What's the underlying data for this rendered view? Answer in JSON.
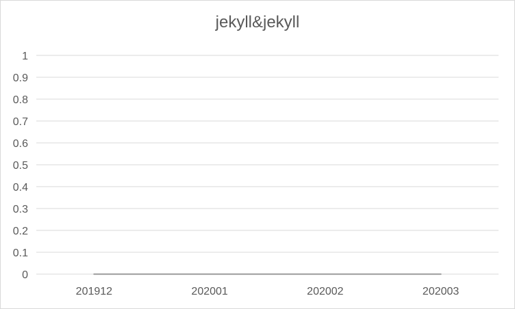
{
  "chart_data": {
    "type": "line",
    "title": "jekyll&jekyll",
    "xlabel": "",
    "ylabel": "",
    "categories": [
      "201912",
      "202001",
      "202002",
      "202003"
    ],
    "series": [
      {
        "values": [
          0,
          0,
          0,
          0
        ],
        "color": "#a5a5a5"
      }
    ],
    "ylim": [
      0,
      1
    ],
    "yticks": [
      "0",
      "0.1",
      "0.2",
      "0.3",
      "0.4",
      "0.5",
      "0.6",
      "0.7",
      "0.8",
      "0.9",
      "1"
    ],
    "grid": true,
    "legend": "none",
    "colors": {
      "gridline": "#d9d9d9",
      "text": "#595959",
      "border": "#d9d9d9"
    }
  }
}
